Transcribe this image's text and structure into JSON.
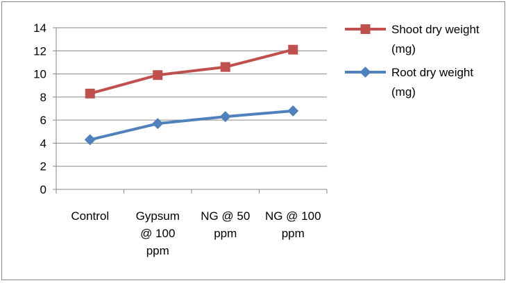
{
  "chart_data": {
    "type": "line",
    "categories": [
      [
        "Control"
      ],
      [
        "Gypsum",
        "@ 100",
        "ppm"
      ],
      [
        "NG @ 50",
        "ppm"
      ],
      [
        "NG @ 100",
        "ppm"
      ]
    ],
    "series": [
      {
        "name": [
          "Shoot dry weight",
          "(mg)"
        ],
        "values": [
          8.3,
          9.9,
          10.6,
          12.1
        ],
        "color": "#C0504D",
        "marker": "square"
      },
      {
        "name": [
          "Root dry weight",
          "(mg)"
        ],
        "values": [
          4.3,
          5.7,
          6.3,
          6.8
        ],
        "color": "#4F81BD",
        "marker": "diamond"
      }
    ],
    "ylim": [
      0,
      14
    ],
    "yticks": [
      "0",
      "2",
      "4",
      "6",
      "8",
      "10",
      "12",
      "14"
    ],
    "grid": true,
    "legend_position": "right"
  }
}
